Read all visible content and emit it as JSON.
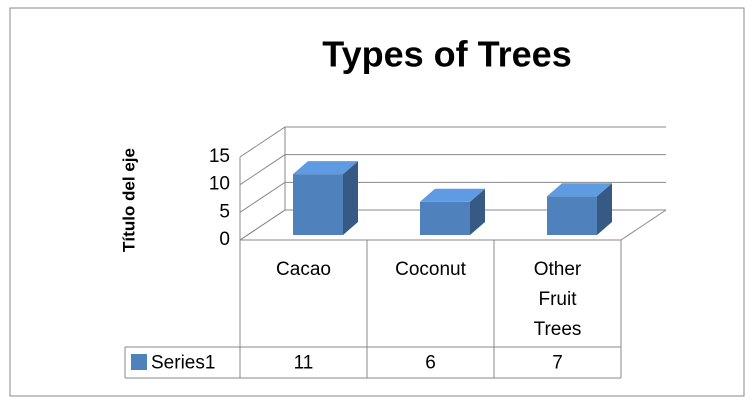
{
  "chart_data": {
    "type": "bar3d",
    "title": "Types of Trees",
    "y_label": "Título del eje",
    "categories": [
      "Cacao",
      "Coconut",
      "Other Fruit Trees"
    ],
    "series": [
      {
        "name": "Series1",
        "color": "#4f81bd",
        "values": [
          11,
          6,
          7
        ]
      }
    ],
    "ylim": [
      0,
      15
    ],
    "yticks": [
      0,
      5,
      10,
      15
    ],
    "grid": true,
    "data_table": true
  }
}
